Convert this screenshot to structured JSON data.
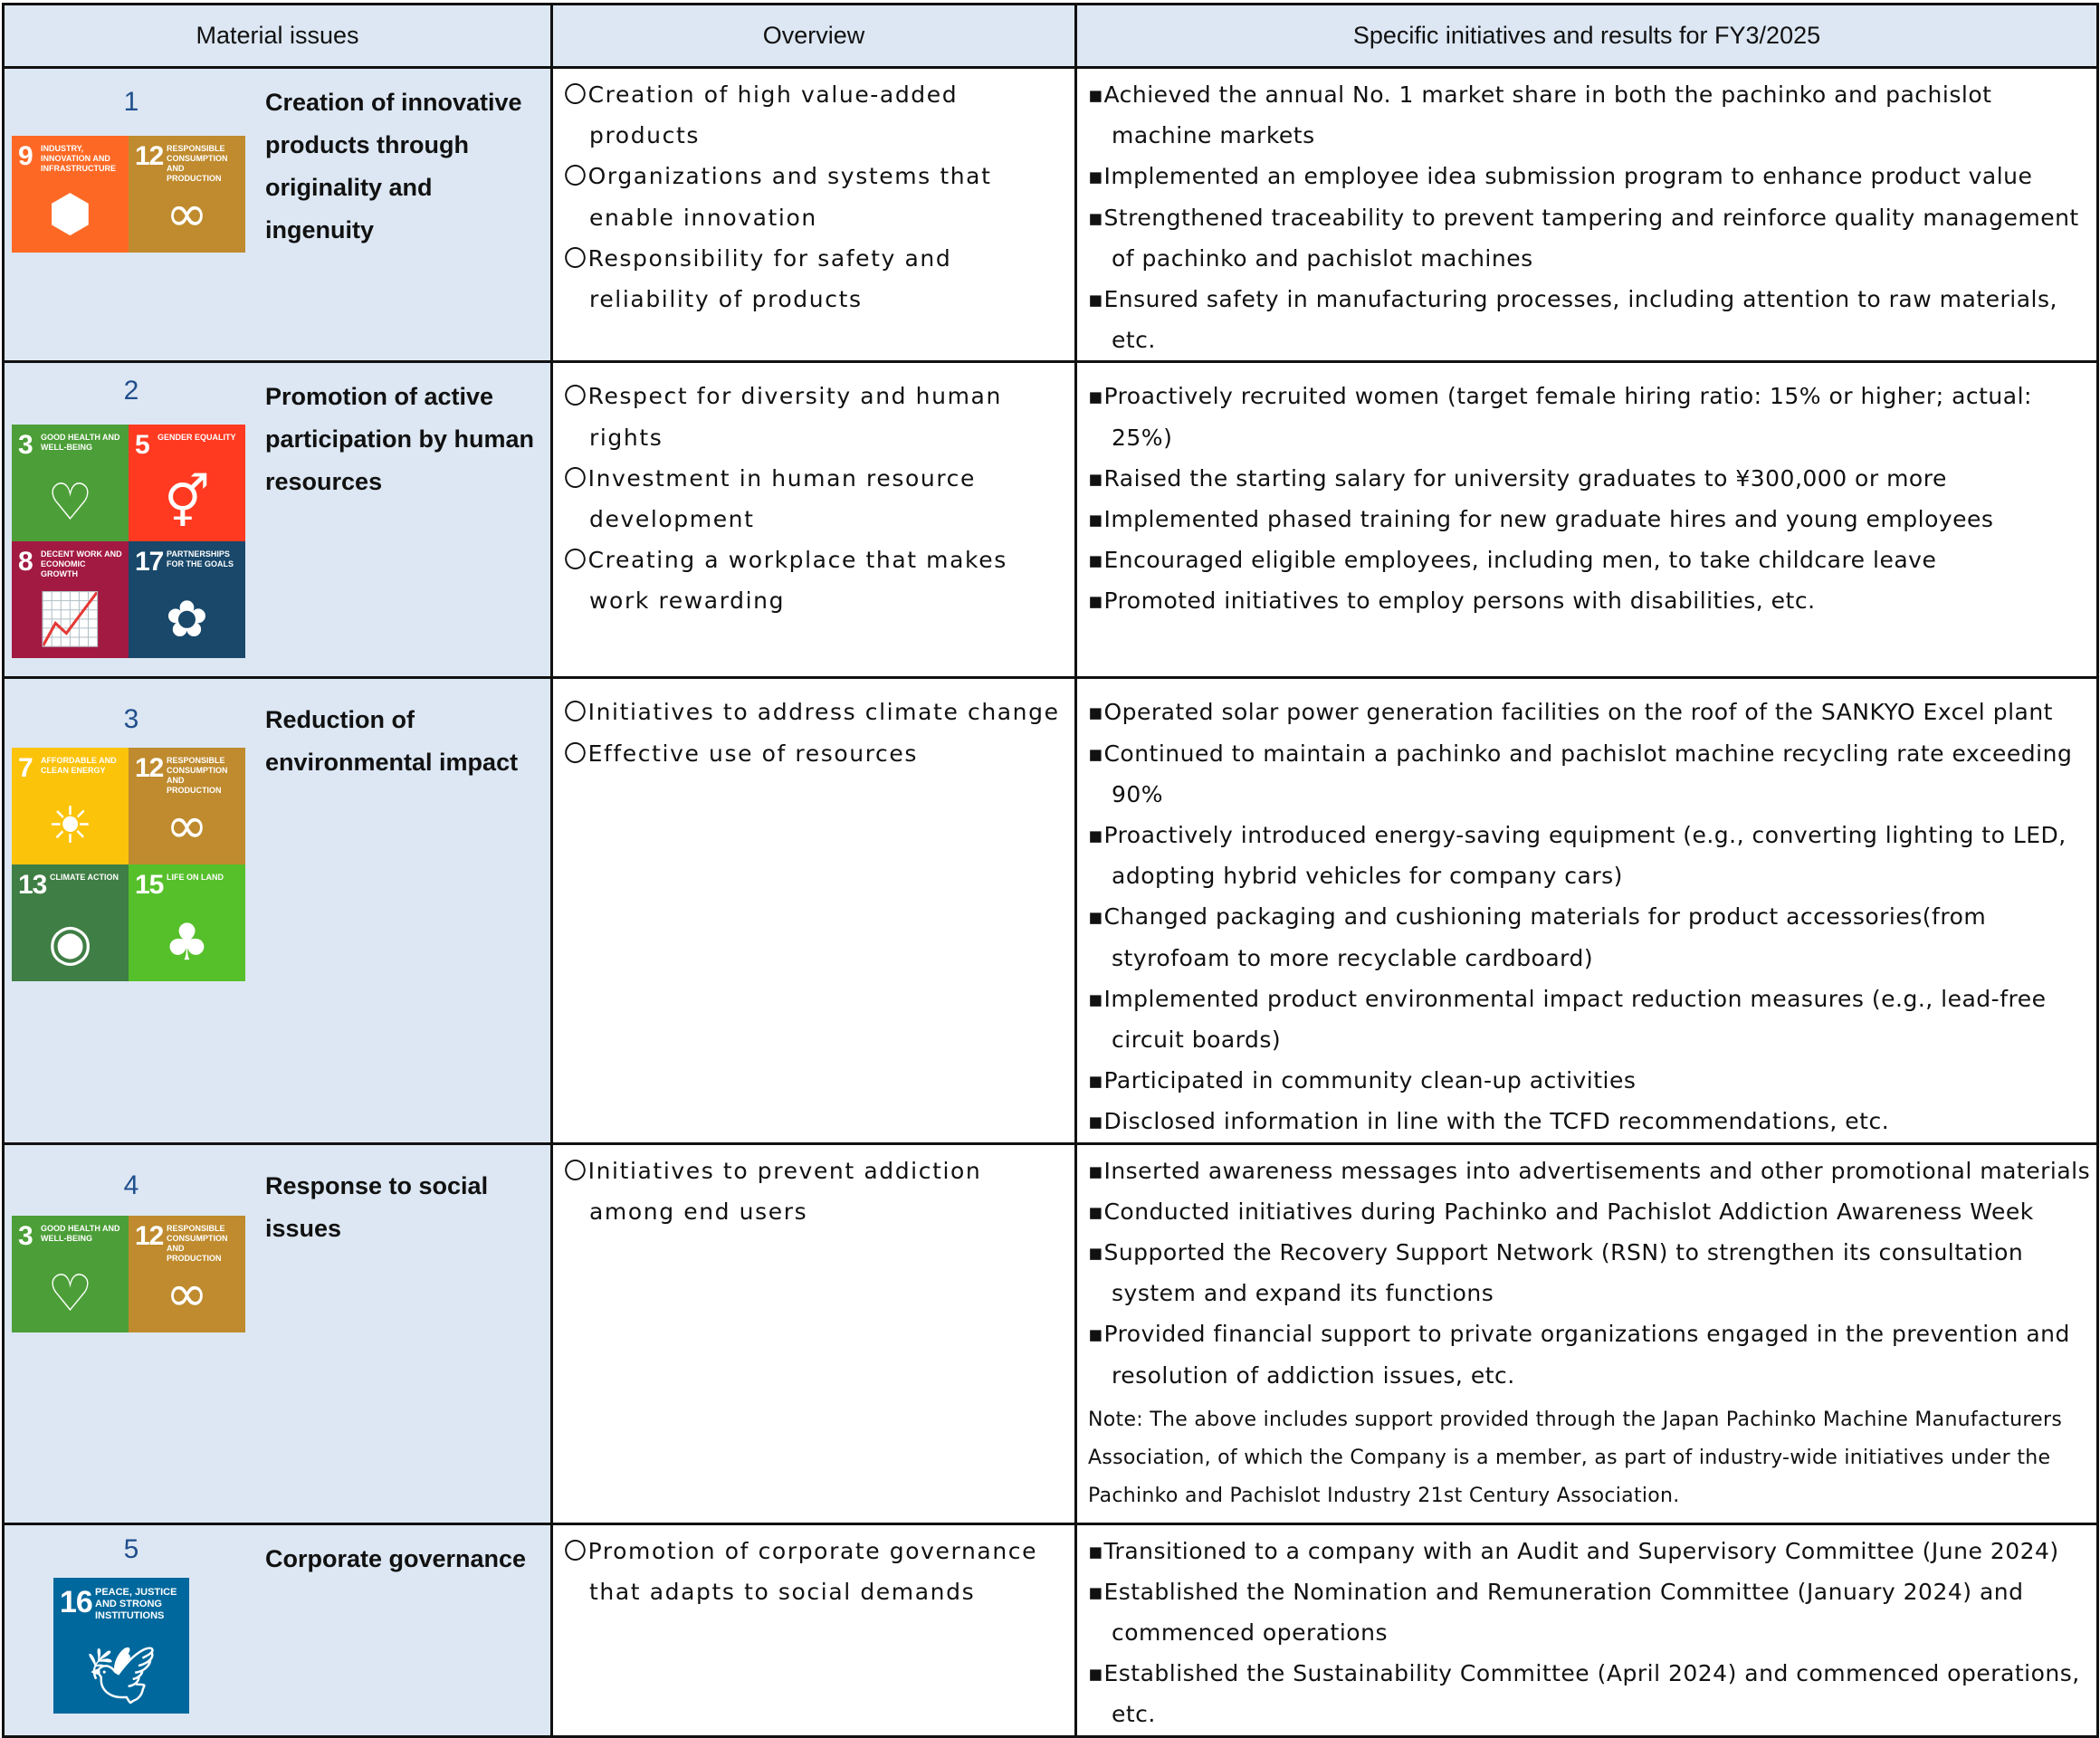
{
  "header": {
    "col1": "Material issues",
    "col2": "Overview",
    "col3": "Specific initiatives and results for FY3/2025"
  },
  "colors": {
    "header_bg": "#dce7f3",
    "issue_bg": "#dce7f3",
    "number": "#1f4e8c"
  },
  "rows": [
    {
      "number": "1",
      "title": "Creation of innovative products through originality and ingenuity",
      "sdgs": [
        {
          "num": "9",
          "label": "INDUSTRY, INNOVATION AND INFRASTRUCTURE",
          "color": "#fd6925",
          "icon": "cubes-icon",
          "glyph": "⬢"
        },
        {
          "num": "12",
          "label": "RESPONSIBLE CONSUMPTION AND PRODUCTION",
          "color": "#bf8b2e",
          "icon": "infinity-icon",
          "glyph": "∞"
        }
      ],
      "overview": [
        "〇Creation of high value-added products",
        "〇Organizations and systems that enable innovation",
        "〇Responsibility for safety and reliability of products"
      ],
      "initiatives": [
        "▪Achieved the annual No. 1 market share in both the pachinko and pachislot machine markets",
        "▪Implemented an employee idea submission program to enhance product value",
        "▪Strengthened traceability to prevent tampering and reinforce quality management of pachinko and pachislot machines",
        "▪Ensured safety in manufacturing processes, including attention to raw materials, etc."
      ]
    },
    {
      "number": "2",
      "title": "Promotion of active participation by human resources",
      "sdgs": [
        {
          "num": "3",
          "label": "GOOD HEALTH AND WELL-BEING",
          "color": "#4c9f38",
          "icon": "heartbeat-icon",
          "glyph": "♡"
        },
        {
          "num": "5",
          "label": "GENDER EQUALITY",
          "color": "#ff3a21",
          "icon": "gender-equality-icon",
          "glyph": "⚥"
        },
        {
          "num": "8",
          "label": "DECENT WORK AND ECONOMIC GROWTH",
          "color": "#a21942",
          "icon": "growth-chart-icon",
          "glyph": "📈"
        },
        {
          "num": "17",
          "label": "PARTNERSHIPS FOR THE GOALS",
          "color": "#19486a",
          "icon": "rings-icon",
          "glyph": "✿"
        }
      ],
      "overview": [
        "〇Respect for diversity and human rights",
        "〇Investment in human resource development",
        "〇Creating a workplace that makes work rewarding"
      ],
      "initiatives": [
        "▪Proactively recruited women (target female hiring ratio: 15% or higher; actual: 25%)",
        "▪Raised the starting salary for university graduates to ¥300,000 or more",
        "▪Implemented phased training for new graduate hires and young employees",
        "▪Encouraged eligible employees, including men, to take childcare leave",
        "▪Promoted initiatives to employ persons with disabilities, etc."
      ]
    },
    {
      "number": "3",
      "title": "Reduction of environmental impact",
      "sdgs": [
        {
          "num": "7",
          "label": "AFFORDABLE AND CLEAN ENERGY",
          "color": "#fcc30b",
          "icon": "sun-power-icon",
          "glyph": "☀"
        },
        {
          "num": "12",
          "label": "RESPONSIBLE CONSUMPTION AND PRODUCTION",
          "color": "#bf8b2e",
          "icon": "infinity-icon",
          "glyph": "∞"
        },
        {
          "num": "13",
          "label": "CLIMATE ACTION",
          "color": "#3f7e44",
          "icon": "eye-globe-icon",
          "glyph": "◉"
        },
        {
          "num": "15",
          "label": "LIFE ON LAND",
          "color": "#56c02b",
          "icon": "tree-icon",
          "glyph": "♣"
        }
      ],
      "overview": [
        "〇Initiatives to address climate change",
        "〇Effective use of resources"
      ],
      "initiatives": [
        "▪Operated solar power generation facilities on the roof of the SANKYO Excel plant",
        "▪Continued to maintain a pachinko and pachislot machine recycling rate exceeding 90%",
        "▪Proactively introduced energy-saving equipment (e.g., converting lighting to LED, adopting hybrid vehicles for company cars)",
        "▪Changed packaging and cushioning materials for product accessories(from styrofoam to more recyclable cardboard)",
        "▪Implemented product environmental impact reduction measures (e.g., lead-free circuit boards)",
        "▪Participated in community clean-up activities",
        "▪Disclosed information in line with the TCFD recommendations, etc."
      ]
    },
    {
      "number": "4",
      "title": "Response to social issues",
      "sdgs": [
        {
          "num": "3",
          "label": "GOOD HEALTH AND WELL-BEING",
          "color": "#4c9f38",
          "icon": "heartbeat-icon",
          "glyph": "♡"
        },
        {
          "num": "12",
          "label": "RESPONSIBLE CONSUMPTION AND PRODUCTION",
          "color": "#bf8b2e",
          "icon": "infinity-icon",
          "glyph": "∞"
        }
      ],
      "overview": [
        "〇Initiatives to prevent addiction among end users"
      ],
      "initiatives": [
        "▪Inserted awareness messages into advertisements and other promotional materials",
        "▪Conducted initiatives during Pachinko and Pachislot Addiction Awareness Week",
        "▪Supported the Recovery Support Network (RSN) to strengthen its consultation system and expand its functions",
        "▪Provided financial support to private organizations engaged in the prevention and resolution of addiction issues, etc."
      ],
      "note": "Note: The above includes support provided through the Japan Pachinko Machine Manufacturers Association, of which the Company is a member, as part of industry-wide initiatives under the Pachinko and Pachislot Industry 21st Century Association."
    },
    {
      "number": "5",
      "title": "Corporate governance",
      "sdgs": [
        {
          "num": "16",
          "label": "PEACE, JUSTICE AND STRONG INSTITUTIONS",
          "color": "#00689d",
          "icon": "dove-gavel-icon",
          "glyph": "🕊"
        }
      ],
      "overview": [
        "〇Promotion of corporate governance that adapts to social demands"
      ],
      "initiatives": [
        "▪Transitioned to a company with an Audit and Supervisory Committee (June 2024)",
        "▪Established the Nomination and Remuneration Committee (January 2024) and commenced operations",
        "▪Established the Sustainability Committee (April 2024) and commenced operations, etc."
      ]
    }
  ]
}
